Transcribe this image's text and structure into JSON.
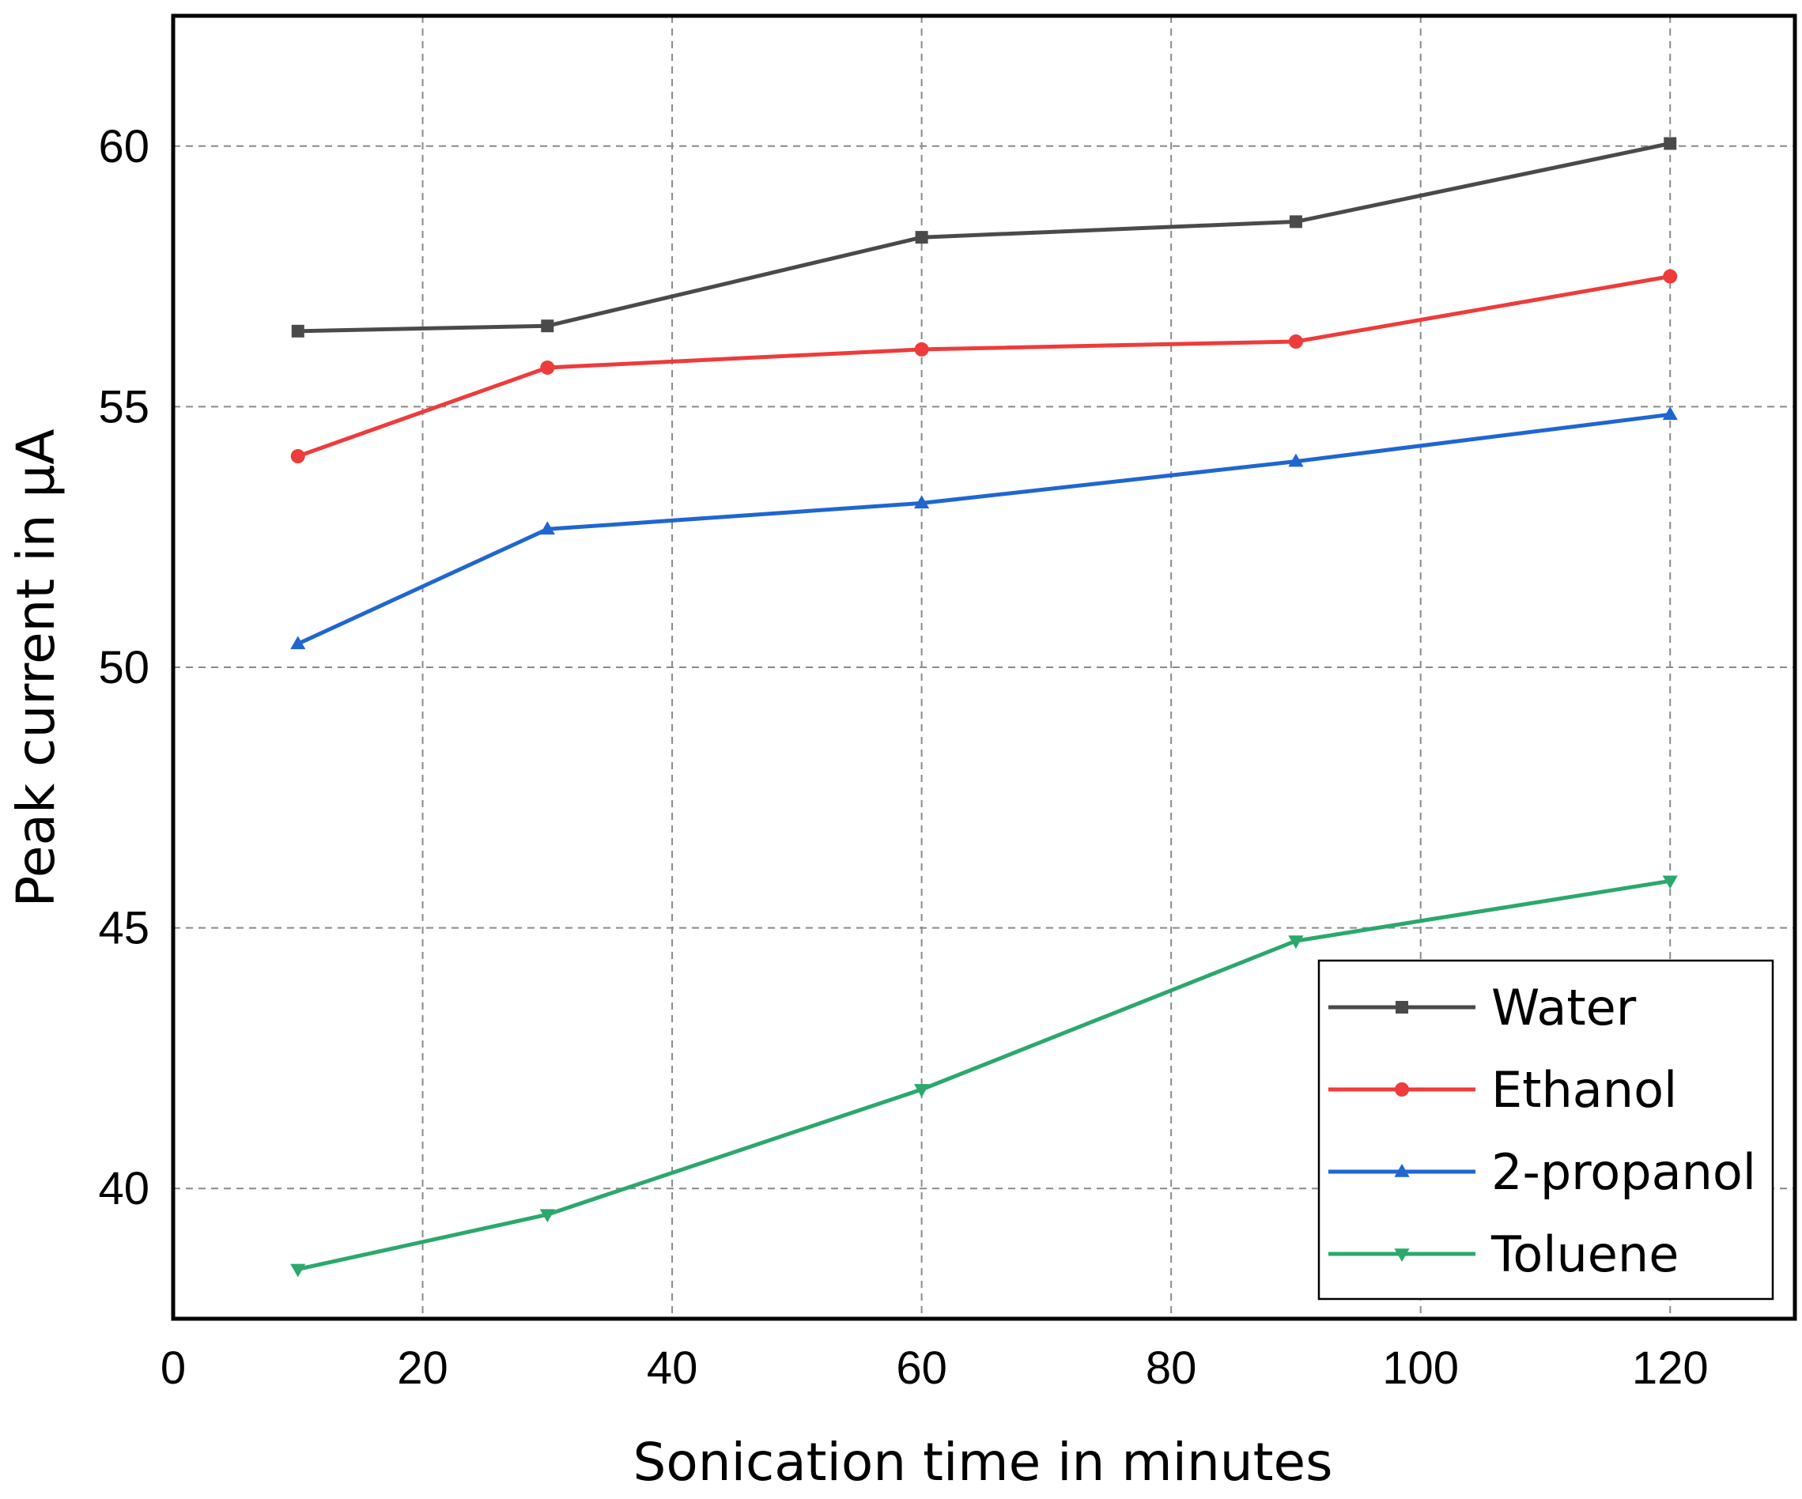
{
  "chart_data": {
    "type": "line",
    "title": "",
    "xlabel": "Sonication time in minutes",
    "ylabel": "Peak current in µA",
    "xlim": [
      0,
      130
    ],
    "ylim": [
      37.5,
      62.5
    ],
    "xticks": [
      0,
      20,
      40,
      60,
      80,
      100,
      120
    ],
    "yticks": [
      40,
      45,
      50,
      55,
      60
    ],
    "xtick_labels": [
      "0",
      "20",
      "40",
      "60",
      "80",
      "100",
      "120"
    ],
    "ytick_labels": [
      "40",
      "45",
      "50",
      "55",
      "60"
    ],
    "grid": true,
    "legend_position": "bottom-right",
    "x": [
      10,
      30,
      60,
      90,
      120
    ],
    "series": [
      {
        "name": "Water",
        "color": "#4a4a4a",
        "marker": "square",
        "values": [
          56.45,
          56.55,
          58.25,
          58.55,
          60.05
        ]
      },
      {
        "name": "Ethanol",
        "color": "#ee3b3b",
        "marker": "circle",
        "values": [
          54.05,
          55.75,
          56.1,
          56.25,
          57.5
        ]
      },
      {
        "name": "2-propanol",
        "color": "#1f66d1",
        "marker": "triangle-up",
        "values": [
          50.45,
          52.65,
          53.15,
          53.95,
          54.85
        ]
      },
      {
        "name": "Toluene",
        "color": "#2ba86b",
        "marker": "triangle-down",
        "values": [
          38.45,
          39.5,
          41.9,
          44.75,
          45.9
        ]
      }
    ]
  }
}
